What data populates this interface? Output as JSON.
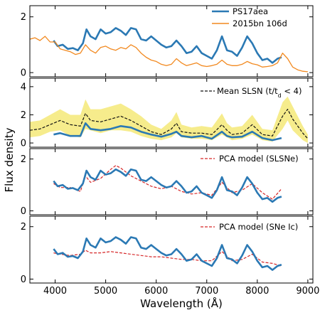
{
  "figure": {
    "ylabel": "Flux density",
    "xlabel": "Wavelength (Å)"
  },
  "colors": {
    "blue": "#2b79b4",
    "orange": "#f2891f",
    "black": "#111111",
    "red": "#d62728",
    "band": "#f6ec8c"
  },
  "chart_data": [
    {
      "type": "line",
      "xlim": [
        3500,
        9100
      ],
      "ylim": [
        -0.15,
        2.4
      ],
      "yticks": [
        0,
        2
      ],
      "xticks": [
        4000,
        5000,
        6000,
        7000,
        8000,
        9000
      ],
      "legend_position": "top-right",
      "series": [
        {
          "name": "PS17aea",
          "color": "#2b79b4",
          "x": [
            3970,
            4050,
            4150,
            4250,
            4350,
            4450,
            4550,
            4620,
            4700,
            4800,
            4900,
            5000,
            5100,
            5200,
            5300,
            5400,
            5500,
            5600,
            5700,
            5800,
            5900,
            6000,
            6100,
            6200,
            6300,
            6400,
            6500,
            6600,
            6700,
            6800,
            6900,
            7000,
            7100,
            7200,
            7300,
            7400,
            7500,
            7600,
            7700,
            7800,
            7900,
            8000,
            8100,
            8200,
            8300,
            8400,
            8480
          ],
          "y": [
            1.15,
            0.95,
            1.0,
            0.85,
            0.88,
            0.8,
            1.05,
            1.55,
            1.3,
            1.2,
            1.55,
            1.4,
            1.45,
            1.6,
            1.5,
            1.35,
            1.6,
            1.55,
            1.2,
            1.15,
            1.3,
            1.15,
            1.0,
            0.9,
            0.95,
            1.15,
            0.95,
            0.7,
            0.75,
            0.95,
            0.7,
            0.6,
            0.5,
            0.8,
            1.3,
            0.8,
            0.75,
            0.6,
            0.9,
            1.3,
            1.05,
            0.7,
            0.45,
            0.5,
            0.35,
            0.5,
            0.55
          ]
        },
        {
          "name": "2015bn 106d",
          "color": "#f2891f",
          "x": [
            3500,
            3600,
            3700,
            3800,
            3900,
            4000,
            4100,
            4200,
            4300,
            4400,
            4500,
            4600,
            4700,
            4800,
            4900,
            5000,
            5100,
            5200,
            5300,
            5400,
            5500,
            5600,
            5700,
            5800,
            5900,
            6000,
            6100,
            6200,
            6300,
            6400,
            6500,
            6600,
            6700,
            6800,
            6900,
            7000,
            7100,
            7200,
            7300,
            7400,
            7500,
            7600,
            7700,
            7800,
            7900,
            8000,
            8100,
            8200,
            8300,
            8400,
            8500,
            8600,
            8700,
            8800,
            8900,
            9000
          ],
          "y": [
            1.2,
            1.25,
            1.15,
            1.3,
            1.1,
            1.1,
            0.85,
            0.8,
            0.75,
            0.65,
            0.7,
            1.0,
            0.8,
            0.7,
            0.9,
            0.95,
            0.85,
            0.8,
            0.9,
            0.85,
            1.0,
            0.9,
            0.7,
            0.55,
            0.45,
            0.4,
            0.3,
            0.25,
            0.3,
            0.5,
            0.35,
            0.25,
            0.3,
            0.35,
            0.25,
            0.22,
            0.25,
            0.3,
            0.45,
            0.3,
            0.25,
            0.25,
            0.3,
            0.4,
            0.32,
            0.28,
            0.2,
            0.22,
            0.25,
            0.35,
            0.7,
            0.5,
            0.2,
            0.1,
            0.05,
            0.03
          ]
        }
      ]
    },
    {
      "type": "line",
      "xlim": [
        3500,
        9100
      ],
      "ylim": [
        -0.3,
        4.6
      ],
      "yticks": [
        0,
        2,
        4
      ],
      "xticks": [
        4000,
        5000,
        6000,
        7000,
        8000,
        9000
      ],
      "legend_position": "top-right",
      "band": {
        "x": [
          3500,
          3700,
          3900,
          4100,
          4300,
          4500,
          4600,
          4700,
          4900,
          5100,
          5300,
          5500,
          5700,
          5900,
          6100,
          6300,
          6400,
          6500,
          6700,
          6900,
          7100,
          7300,
          7400,
          7500,
          7700,
          7900,
          8100,
          8300,
          8500,
          8600,
          8700,
          8900,
          9000
        ],
        "lower": [
          0.4,
          0.5,
          0.8,
          0.9,
          0.5,
          0.4,
          1.0,
          0.9,
          0.7,
          0.9,
          0.9,
          0.8,
          0.5,
          0.3,
          0.2,
          0.4,
          0.7,
          0.4,
          0.3,
          0.3,
          0.2,
          0.6,
          0.4,
          0.2,
          0.3,
          0.6,
          0.2,
          0.1,
          1.0,
          1.6,
          0.9,
          0.2,
          0.0
        ],
        "upper": [
          1.5,
          1.6,
          2.0,
          2.4,
          2.0,
          2.0,
          3.1,
          2.4,
          2.4,
          2.6,
          2.8,
          2.4,
          1.9,
          1.3,
          1.0,
          1.6,
          2.2,
          1.3,
          1.1,
          1.2,
          1.1,
          2.1,
          1.4,
          1.1,
          1.2,
          2.0,
          1.0,
          0.9,
          2.9,
          3.3,
          2.6,
          1.2,
          0.6
        ]
      },
      "series": [
        {
          "name": "Mean SLSN (t/t",
          "color": "#111111",
          "dash": true,
          "x": [
            3500,
            3700,
            3900,
            4100,
            4300,
            4500,
            4600,
            4700,
            4900,
            5100,
            5300,
            5500,
            5700,
            5900,
            6100,
            6300,
            6400,
            6500,
            6700,
            6900,
            7100,
            7300,
            7400,
            7500,
            7700,
            7900,
            8100,
            8300,
            8500,
            8600,
            8700,
            8900,
            9000
          ],
          "y": [
            0.9,
            1.0,
            1.3,
            1.6,
            1.3,
            1.2,
            2.1,
            1.6,
            1.5,
            1.7,
            1.9,
            1.6,
            1.2,
            0.8,
            0.6,
            1.0,
            1.4,
            0.8,
            0.7,
            0.7,
            0.6,
            1.3,
            0.9,
            0.6,
            0.7,
            1.3,
            0.6,
            0.5,
            1.9,
            2.4,
            1.7,
            0.7,
            0.3
          ]
        },
        {
          "name": "PS17aea",
          "color": "#2b79b4",
          "x": [
            3970,
            4100,
            4300,
            4500,
            4600,
            4700,
            4900,
            5100,
            5300,
            5500,
            5700,
            5900,
            6100,
            6300,
            6400,
            6500,
            6700,
            6900,
            7100,
            7300,
            7400,
            7500,
            7700,
            7900,
            8100,
            8300,
            8480
          ],
          "y": [
            0.6,
            0.7,
            0.5,
            0.5,
            1.4,
            1.0,
            0.9,
            1.0,
            1.2,
            1.1,
            0.8,
            0.6,
            0.45,
            0.65,
            0.8,
            0.5,
            0.4,
            0.5,
            0.3,
            0.8,
            0.5,
            0.4,
            0.45,
            0.8,
            0.35,
            0.2,
            0.35
          ]
        }
      ]
    },
    {
      "type": "line",
      "xlim": [
        3500,
        9100
      ],
      "ylim": [
        -0.15,
        2.4
      ],
      "yticks": [
        0,
        2
      ],
      "xticks": [
        4000,
        5000,
        6000,
        7000,
        8000,
        9000
      ],
      "legend_position": "top-right",
      "series": [
        {
          "name": "PCA model (SLSNe)",
          "color": "#d62728",
          "dash": true,
          "x": [
            3970,
            4100,
            4300,
            4500,
            4600,
            4700,
            4900,
            5100,
            5200,
            5300,
            5500,
            5700,
            5900,
            6100,
            6300,
            6500,
            6700,
            6900,
            7100,
            7300,
            7500,
            7700,
            7900,
            8100,
            8300,
            8480
          ],
          "y": [
            1.05,
            0.9,
            0.9,
            0.75,
            1.35,
            1.1,
            1.25,
            1.6,
            1.75,
            1.65,
            1.35,
            1.15,
            0.95,
            0.85,
            0.95,
            0.75,
            0.65,
            0.7,
            0.6,
            1.1,
            0.7,
            0.8,
            1.05,
            0.7,
            0.45,
            0.85
          ]
        },
        {
          "name": "PS17aea",
          "color": "#2b79b4",
          "x": [
            3970,
            4050,
            4150,
            4250,
            4350,
            4450,
            4550,
            4620,
            4700,
            4800,
            4900,
            5000,
            5100,
            5200,
            5300,
            5400,
            5500,
            5600,
            5700,
            5800,
            5900,
            6000,
            6100,
            6200,
            6300,
            6400,
            6500,
            6600,
            6700,
            6800,
            6900,
            7000,
            7100,
            7200,
            7300,
            7400,
            7500,
            7600,
            7700,
            7800,
            7900,
            8000,
            8100,
            8200,
            8300,
            8400,
            8480
          ],
          "y": [
            1.15,
            0.95,
            1.0,
            0.85,
            0.88,
            0.8,
            1.05,
            1.55,
            1.3,
            1.2,
            1.55,
            1.4,
            1.45,
            1.6,
            1.5,
            1.35,
            1.6,
            1.55,
            1.2,
            1.15,
            1.3,
            1.15,
            1.0,
            0.9,
            0.95,
            1.15,
            0.95,
            0.7,
            0.75,
            0.95,
            0.7,
            0.6,
            0.5,
            0.8,
            1.3,
            0.8,
            0.75,
            0.6,
            0.9,
            1.3,
            1.05,
            0.7,
            0.45,
            0.5,
            0.35,
            0.5,
            0.55
          ]
        }
      ]
    },
    {
      "type": "line",
      "xlim": [
        3500,
        9100
      ],
      "ylim": [
        -0.15,
        2.4
      ],
      "yticks": [
        0,
        2
      ],
      "xticks": [
        4000,
        5000,
        6000,
        7000,
        8000,
        9000
      ],
      "legend_position": "top-right",
      "series": [
        {
          "name": "PCA model (SNe Ic)",
          "color": "#d62728",
          "dash": true,
          "x": [
            3970,
            4100,
            4300,
            4500,
            4600,
            4700,
            4900,
            5100,
            5300,
            5500,
            5700,
            5900,
            6100,
            6300,
            6500,
            6700,
            6900,
            7100,
            7300,
            7500,
            7700,
            7900,
            8100,
            8300,
            8480
          ],
          "y": [
            1.0,
            0.95,
            0.9,
            0.95,
            1.1,
            1.0,
            1.0,
            1.05,
            1.0,
            0.95,
            0.9,
            0.85,
            0.85,
            0.8,
            0.75,
            0.75,
            0.7,
            0.7,
            1.05,
            0.7,
            0.75,
            0.95,
            0.65,
            0.6,
            0.5
          ]
        },
        {
          "name": "PS17aea",
          "color": "#2b79b4",
          "x": [
            3970,
            4050,
            4150,
            4250,
            4350,
            4450,
            4550,
            4620,
            4700,
            4800,
            4900,
            5000,
            5100,
            5200,
            5300,
            5400,
            5500,
            5600,
            5700,
            5800,
            5900,
            6000,
            6100,
            6200,
            6300,
            6400,
            6500,
            6600,
            6700,
            6800,
            6900,
            7000,
            7100,
            7200,
            7300,
            7400,
            7500,
            7600,
            7700,
            7800,
            7900,
            8000,
            8100,
            8200,
            8300,
            8400,
            8480
          ],
          "y": [
            1.15,
            0.95,
            1.0,
            0.85,
            0.88,
            0.8,
            1.05,
            1.55,
            1.3,
            1.2,
            1.55,
            1.4,
            1.45,
            1.6,
            1.5,
            1.35,
            1.6,
            1.55,
            1.2,
            1.15,
            1.3,
            1.15,
            1.0,
            0.9,
            0.95,
            1.15,
            0.95,
            0.7,
            0.75,
            0.95,
            0.7,
            0.6,
            0.5,
            0.8,
            1.3,
            0.8,
            0.75,
            0.6,
            0.9,
            1.3,
            1.05,
            0.7,
            0.45,
            0.5,
            0.35,
            0.5,
            0.55
          ]
        }
      ]
    }
  ]
}
